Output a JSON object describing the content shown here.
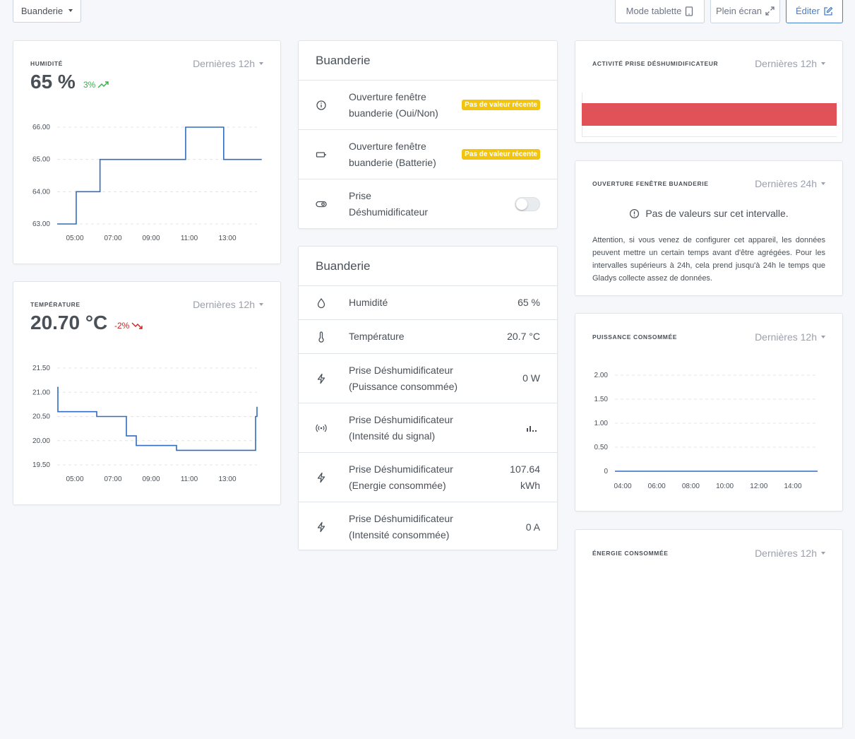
{
  "header": {
    "room_selector": "Buanderie",
    "tablet_mode": "Mode tablette",
    "fullscreen": "Plein écran",
    "edit": "Éditer"
  },
  "humidity_card": {
    "title": "HUMIDITÉ",
    "period": "Dernières 12h",
    "value": "65 %",
    "trend": "3%",
    "trend_color": "#2fb344"
  },
  "temperature_card": {
    "title": "TEMPÉRATURE",
    "period": "Dernières 12h",
    "value": "20.70 °C",
    "trend": "-2%",
    "trend_color": "#cd201f"
  },
  "device_card_1": {
    "title": "Buanderie",
    "rows": [
      {
        "icon": "info-icon",
        "label_line1": "Ouverture fenêtre",
        "label_line2": "buanderie (Oui/Non)",
        "badge": "Pas de valeur récente"
      },
      {
        "icon": "battery-icon",
        "label_line1": "Ouverture fenêtre",
        "label_line2": "buanderie (Batterie)",
        "badge": "Pas de valeur récente"
      },
      {
        "icon": "toggle-icon",
        "label_line1": "Prise",
        "label_line2": "Déshumidificateur",
        "toggle": false
      }
    ]
  },
  "device_card_2": {
    "title": "Buanderie",
    "rows": [
      {
        "icon": "droplet-icon",
        "label_line1": "Humidité",
        "value": "65 %"
      },
      {
        "icon": "thermometer-icon",
        "label_line1": "Température",
        "value": "20.7 °C"
      },
      {
        "icon": "lightning-icon",
        "label_line1": "Prise Déshumidificateur",
        "label_line2": "(Puissance consommée)",
        "value": "0 W"
      },
      {
        "icon": "signal-icon",
        "label_line1": "Prise Déshumidificateur",
        "label_line2": "(Intensité du signal)",
        "value": "signal-bars-icon"
      },
      {
        "icon": "lightning-icon",
        "label_line1": "Prise Déshumidificateur",
        "label_line2": "(Energie consommée)",
        "value": "107.64",
        "value_line2": "kWh"
      },
      {
        "icon": "lightning-icon",
        "label_line1": "Prise Déshumidificateur",
        "label_line2": "(Intensité consommée)",
        "value": "0 A"
      }
    ]
  },
  "activity_card": {
    "title": "ACTIVITÉ PRISE DÉSHUMIDIFICATEUR",
    "period": "Dernières 12h",
    "bar_color": "#e05257"
  },
  "window_card": {
    "title": "OUVERTURE FENÊTRE BUANDERIE",
    "period": "Dernières 24h",
    "no_values": "Pas de valeurs sur cet intervalle.",
    "note": "Attention, si vous venez de configurer cet appareil, les données peuvent mettre un certain temps avant d'être agrégées. Pour les intervalles supérieurs à 24h, cela prend jusqu'à 24h le temps que Gladys collecte assez de données."
  },
  "power_card": {
    "title": "PUISSANCE CONSOMMÉE",
    "period": "Dernières 12h"
  },
  "energy_card": {
    "title": "ÉNERGIE CONSOMMÉE",
    "period": "Dernières 12h"
  },
  "chart_data": [
    {
      "type": "line",
      "id": "humidity",
      "x": [
        "04:00",
        "05:00",
        "06:00",
        "06:15",
        "07:00",
        "08:00",
        "09:00",
        "10:00",
        "10:45",
        "11:00",
        "12:00",
        "12:45",
        "13:00",
        "14:00",
        "14:45"
      ],
      "y": [
        63.0,
        64.0,
        64.0,
        65.0,
        65.0,
        65.0,
        65.0,
        65.0,
        66.0,
        66.0,
        66.0,
        65.0,
        65.0,
        65.0,
        65.0
      ],
      "x_ticks": [
        "05:00",
        "07:00",
        "09:00",
        "11:00",
        "13:00"
      ],
      "y_ticks": [
        "66.00",
        "65.00",
        "64.00",
        "63.00"
      ],
      "ylim": [
        63.0,
        66.0
      ],
      "color": "#316cbe"
    },
    {
      "type": "line",
      "id": "temperature",
      "x_ticks": [
        "05:00",
        "07:00",
        "09:00",
        "11:00",
        "13:00"
      ],
      "y_ticks": [
        "21.50",
        "21.00",
        "20.50",
        "20.00",
        "19.50"
      ],
      "ylim": [
        19.5,
        21.5
      ],
      "y": [
        21.1,
        20.6,
        20.5,
        20.5,
        20.1,
        19.9,
        19.8,
        19.8,
        19.8,
        19.8,
        20.1,
        20.5,
        20.7
      ],
      "color": "#316cbe"
    },
    {
      "type": "line",
      "id": "power",
      "x_ticks": [
        "04:00",
        "06:00",
        "08:00",
        "10:00",
        "12:00",
        "14:00"
      ],
      "y_ticks": [
        "2.00",
        "1.50",
        "1.00",
        "0.50",
        "0"
      ],
      "ylim": [
        0,
        2
      ],
      "y": [
        0,
        0,
        0,
        0,
        0,
        0,
        0
      ],
      "color": "#316cbe"
    }
  ]
}
